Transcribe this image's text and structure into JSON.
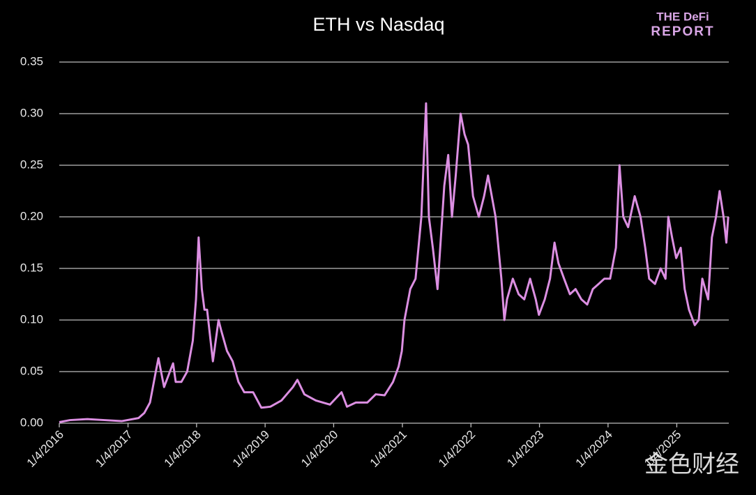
{
  "chart_data": {
    "type": "line",
    "title": "ETH vs Nasdaq",
    "logo": [
      "THE DeFi",
      "REPORT"
    ],
    "watermark": "金色财经",
    "color": "#dc8fe2",
    "grid": true,
    "xlim": [
      "2016-01-04",
      "2025-10-08"
    ],
    "xticks": [
      {
        "value": "2016-01-04",
        "label": "1/4/2016"
      },
      {
        "value": "2017-01-04",
        "label": "1/4/2017"
      },
      {
        "value": "2018-01-04",
        "label": "1/4/2018"
      },
      {
        "value": "2019-01-04",
        "label": "1/4/2019"
      },
      {
        "value": "2020-01-04",
        "label": "1/4/2020"
      },
      {
        "value": "2021-01-04",
        "label": "1/4/2021"
      },
      {
        "value": "2022-01-04",
        "label": "1/4/2022"
      },
      {
        "value": "2023-01-04",
        "label": "1/4/2023"
      },
      {
        "value": "2024-01-04",
        "label": "1/4/2024"
      },
      {
        "value": "2025-01-04",
        "label": "1/4/2025"
      }
    ],
    "ylim": [
      0,
      0.35
    ],
    "yticks": [
      {
        "value": 0,
        "label": "0.00"
      },
      {
        "value": 0.05,
        "label": "0.05"
      },
      {
        "value": 0.1,
        "label": "0.10"
      },
      {
        "value": 0.15,
        "label": "0.15"
      },
      {
        "value": 0.2,
        "label": "0.20"
      },
      {
        "value": 0.25,
        "label": "0.25"
      },
      {
        "value": 0.3,
        "label": "0.30"
      },
      {
        "value": 0.35,
        "label": "0.35"
      }
    ],
    "x": [
      "2016-01-04",
      "2016-03-01",
      "2016-06-01",
      "2016-09-01",
      "2016-12-01",
      "2017-03-01",
      "2017-04-01",
      "2017-05-01",
      "2017-06-01",
      "2017-06-15",
      "2017-07-15",
      "2017-08-15",
      "2017-09-01",
      "2017-09-15",
      "2017-10-15",
      "2017-11-15",
      "2017-12-15",
      "2018-01-01",
      "2018-01-15",
      "2018-02-01",
      "2018-02-15",
      "2018-03-01",
      "2018-04-01",
      "2018-05-01",
      "2018-05-15",
      "2018-06-15",
      "2018-07-15",
      "2018-08-15",
      "2018-09-15",
      "2018-11-01",
      "2018-12-15",
      "2019-02-01",
      "2019-04-01",
      "2019-06-01",
      "2019-06-25",
      "2019-08-01",
      "2019-10-01",
      "2019-12-15",
      "2020-02-15",
      "2020-03-15",
      "2020-05-01",
      "2020-07-01",
      "2020-08-15",
      "2020-10-01",
      "2020-11-15",
      "2020-12-15",
      "2021-01-01",
      "2021-01-15",
      "2021-02-15",
      "2021-03-15",
      "2021-04-15",
      "2021-05-10",
      "2021-05-25",
      "2021-06-15",
      "2021-07-10",
      "2021-08-15",
      "2021-09-05",
      "2021-09-25",
      "2021-10-15",
      "2021-11-10",
      "2021-12-01",
      "2021-12-20",
      "2022-01-15",
      "2022-02-15",
      "2022-03-15",
      "2022-04-05",
      "2022-04-25",
      "2022-05-15",
      "2022-06-15",
      "2022-07-01",
      "2022-07-15",
      "2022-08-15",
      "2022-09-15",
      "2022-10-15",
      "2022-11-15",
      "2022-12-15",
      "2023-01-01",
      "2023-02-01",
      "2023-03-01",
      "2023-03-25",
      "2023-04-15",
      "2023-05-15",
      "2023-06-15",
      "2023-07-15",
      "2023-08-15",
      "2023-09-15",
      "2023-10-15",
      "2023-11-15",
      "2023-12-15",
      "2024-01-15",
      "2024-02-15",
      "2024-03-05",
      "2024-03-25",
      "2024-04-20",
      "2024-05-25",
      "2024-06-25",
      "2024-07-20",
      "2024-08-10",
      "2024-09-10",
      "2024-10-10",
      "2024-11-05",
      "2024-11-20",
      "2024-12-10",
      "2025-01-01",
      "2025-01-25",
      "2025-02-15",
      "2025-03-10",
      "2025-04-10",
      "2025-05-01",
      "2025-05-20",
      "2025-06-20",
      "2025-07-10",
      "2025-08-01",
      "2025-08-20",
      "2025-09-10",
      "2025-09-25",
      "2025-10-05"
    ],
    "values": [
      0.001,
      0.003,
      0.004,
      0.003,
      0.002,
      0.005,
      0.01,
      0.02,
      0.05,
      0.063,
      0.035,
      0.05,
      0.058,
      0.04,
      0.04,
      0.05,
      0.08,
      0.12,
      0.18,
      0.13,
      0.11,
      0.11,
      0.06,
      0.1,
      0.09,
      0.07,
      0.06,
      0.04,
      0.03,
      0.03,
      0.015,
      0.016,
      0.022,
      0.035,
      0.042,
      0.028,
      0.022,
      0.018,
      0.03,
      0.016,
      0.02,
      0.02,
      0.028,
      0.027,
      0.04,
      0.055,
      0.07,
      0.1,
      0.13,
      0.14,
      0.2,
      0.31,
      0.2,
      0.17,
      0.13,
      0.23,
      0.26,
      0.2,
      0.24,
      0.3,
      0.28,
      0.27,
      0.22,
      0.2,
      0.22,
      0.24,
      0.22,
      0.2,
      0.14,
      0.1,
      0.12,
      0.14,
      0.125,
      0.12,
      0.14,
      0.12,
      0.105,
      0.12,
      0.14,
      0.175,
      0.155,
      0.14,
      0.125,
      0.13,
      0.12,
      0.115,
      0.13,
      0.135,
      0.14,
      0.14,
      0.17,
      0.25,
      0.2,
      0.19,
      0.22,
      0.2,
      0.17,
      0.14,
      0.135,
      0.15,
      0.14,
      0.2,
      0.18,
      0.16,
      0.17,
      0.13,
      0.11,
      0.095,
      0.1,
      0.14,
      0.12,
      0.18,
      0.2,
      0.225,
      0.2,
      0.175,
      0.2
    ]
  }
}
